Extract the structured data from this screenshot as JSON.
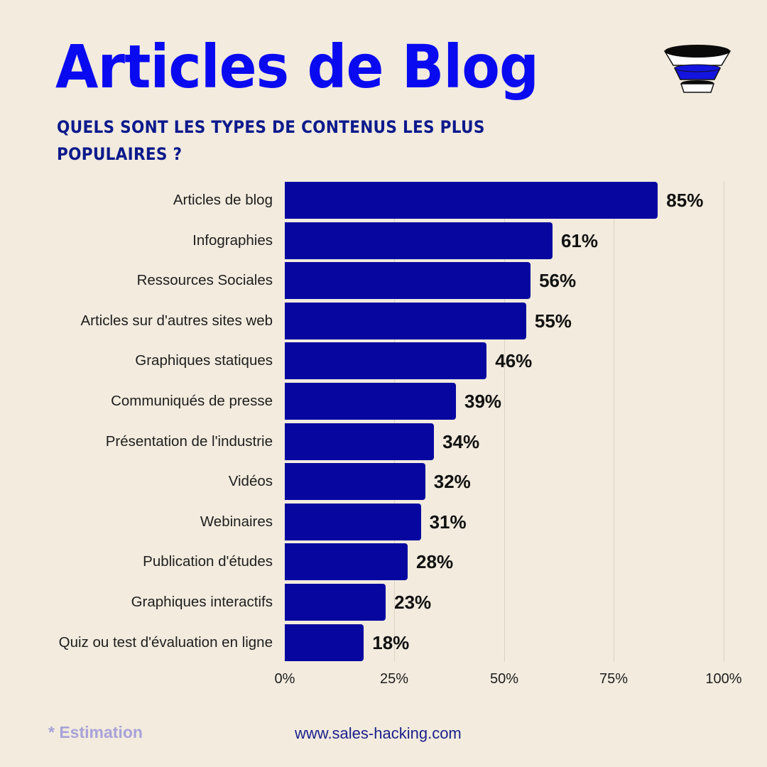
{
  "header": {
    "title": "Articles de Blog",
    "subtitle": "QUELS SONT LES TYPES DE CONTENUS LES PLUS POPULAIRES ?",
    "logo_icon": "funnel-icon"
  },
  "colors": {
    "background": "#f2ebde",
    "title": "#0a0af0",
    "subtitle": "#0c1a8c",
    "bar": "#0707a0",
    "footnote": "#a8a2d8",
    "website": "#1a1f8a"
  },
  "chart_data": {
    "type": "bar",
    "orientation": "horizontal",
    "title": "Articles de Blog",
    "subtitle": "QUELS SONT LES TYPES DE CONTENUS LES PLUS POPULAIRES ?",
    "categories": [
      "Articles de blog",
      "Infographies",
      "Ressources Sociales",
      "Articles sur d'autres sites web",
      "Graphiques statiques",
      "Communiqués de presse",
      "Présentation de l'industrie",
      "Vidéos",
      "Webinaires",
      "Publication d'études",
      "Graphiques interactifs",
      "Quiz ou test d'évaluation en ligne"
    ],
    "values": [
      85,
      61,
      56,
      55,
      46,
      39,
      34,
      32,
      31,
      28,
      23,
      18
    ],
    "value_labels": [
      "85%",
      "61%",
      "56%",
      "55%",
      "46%",
      "39%",
      "34%",
      "32%",
      "31%",
      "28%",
      "23%",
      "18%"
    ],
    "xlabel": "",
    "ylabel": "",
    "xlim": [
      0,
      100
    ],
    "xticks": [
      "0%",
      "25%",
      "50%",
      "75%",
      "100%"
    ],
    "grid": true,
    "legend": null
  },
  "footer": {
    "footnote": "* Estimation",
    "website": "www.sales-hacking.com"
  }
}
